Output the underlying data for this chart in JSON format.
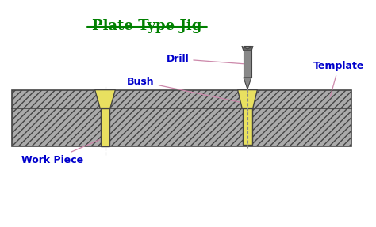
{
  "title": "Plate Type Jig",
  "title_color": "#008000",
  "background_color": "#ffffff",
  "label_color": "#0000cc",
  "plate_color": "#aaaaaa",
  "yellow_color": "#e8e060",
  "dark_gray": "#444444",
  "label_drill": "Drill",
  "label_bush": "Bush",
  "label_template": "Template",
  "label_workpiece": "Work Piece"
}
